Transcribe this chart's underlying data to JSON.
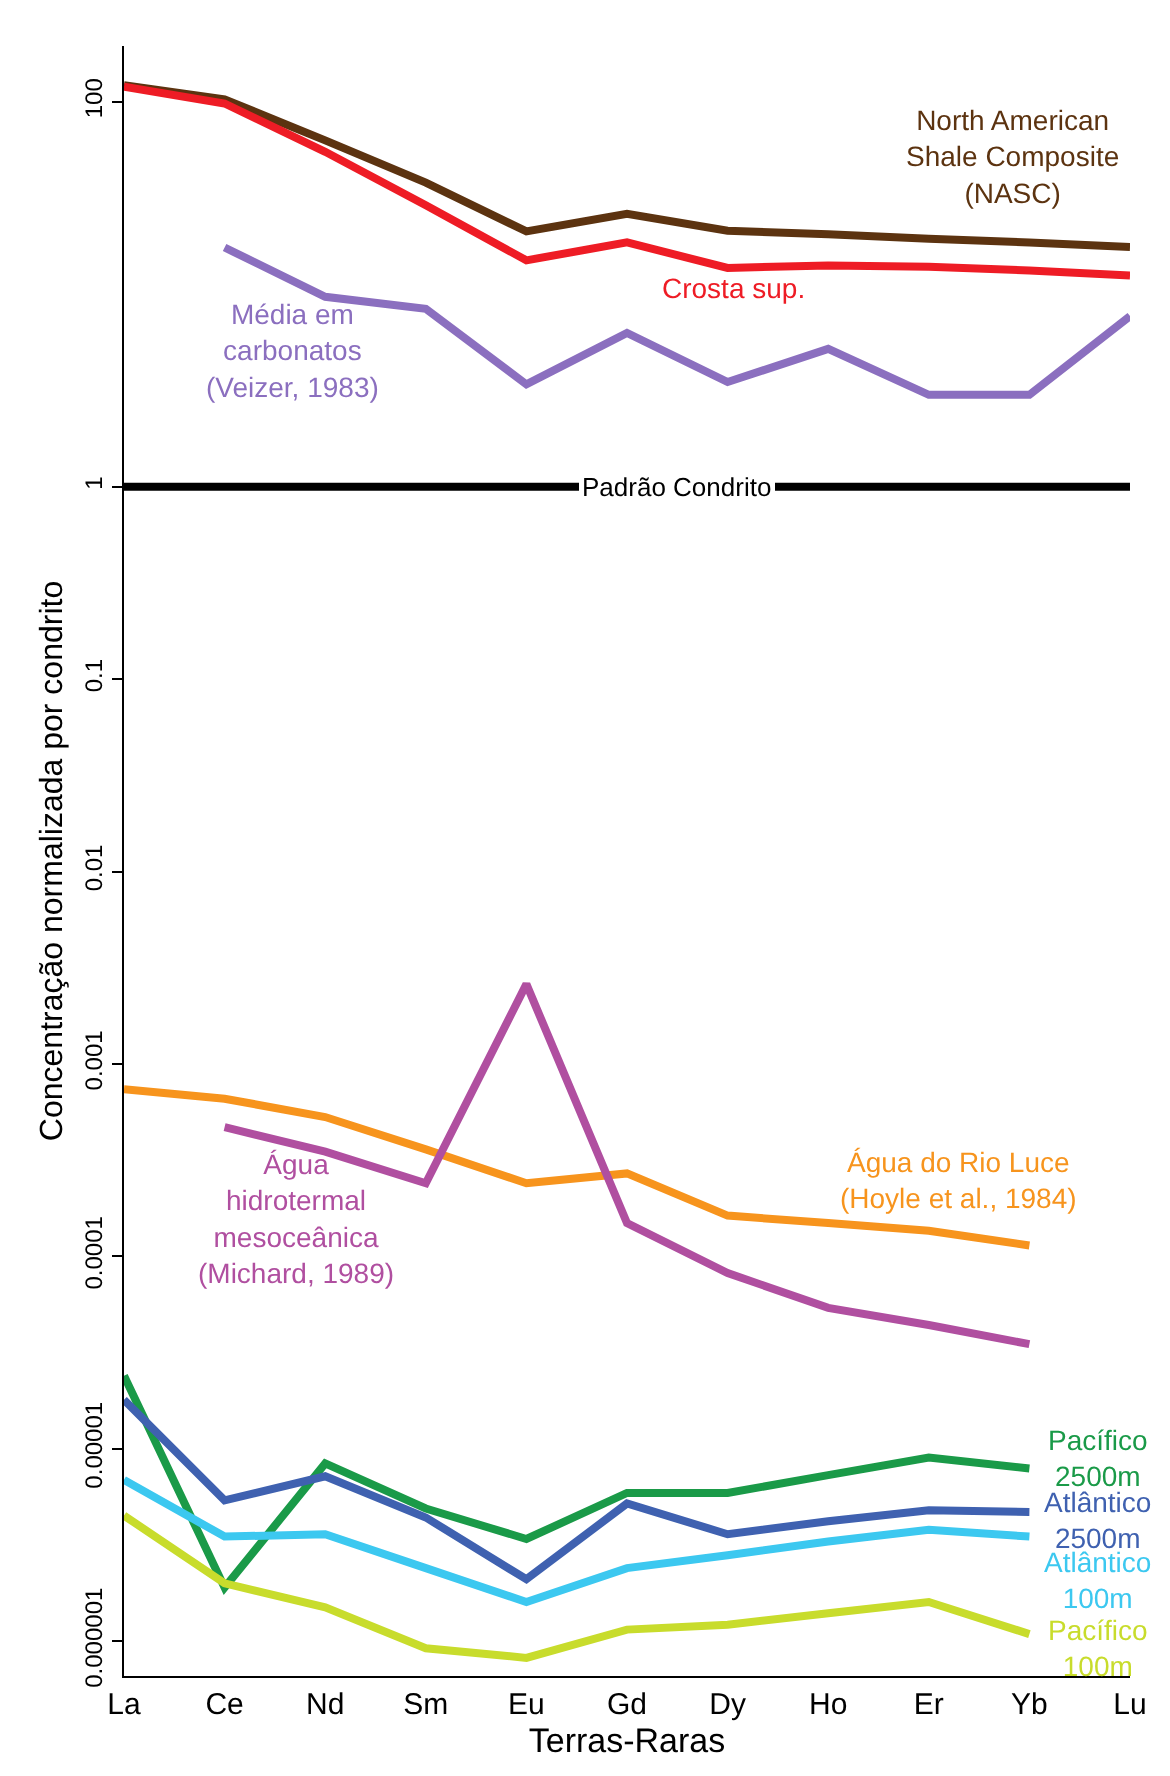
{
  "chart_data": {
    "type": "line",
    "xlabel": "Terras-Raras",
    "ylabel": "Concentração normalizada por condrito",
    "categories": [
      "La",
      "Ce",
      "Nd",
      "Sm",
      "Eu",
      "Gd",
      "Dy",
      "Ho",
      "Er",
      "Yb",
      "Lu"
    ],
    "log": "y",
    "ylim": [
      6.6e-07,
      195
    ],
    "yticks": [
      100,
      1,
      0.1,
      0.01,
      0.001,
      0.0001,
      {
        "value": 1e-05,
        "label": "0.00001"
      },
      {
        "value": 1e-06,
        "label": "0.000001"
      }
    ],
    "marker": "none",
    "line_style": "solid",
    "series": [
      {
        "name": "North American\nShale Composite\n(NASC)",
        "color": "#5c3310",
        "values": [
          122,
          103,
          63,
          38,
          21.2,
          26.2,
          21.4,
          20.5,
          19.4,
          18.6,
          17.6
        ]
      },
      {
        "name": "Crosta sup.",
        "color": "#ee1c25",
        "values": [
          120,
          98,
          55,
          29,
          15,
          18.6,
          13.7,
          14.1,
          13.9,
          13.3,
          12.5
        ]
      },
      {
        "name": "Média em\ncarbonatos\n(Veizer, 1983)",
        "color": "#8b6fbf",
        "values": [
          null,
          17.5,
          9.7,
          8.4,
          3.4,
          6.3,
          3.5,
          5.2,
          3.0,
          3.0,
          7.7
        ]
      },
      {
        "name": "Água do Rio Luce\n(Hoyle et al., 1984)",
        "color": "#f7941d",
        "values": [
          0.00074,
          0.00066,
          0.00053,
          0.00036,
          0.00024,
          0.00027,
          0.000163,
          0.000149,
          0.000136,
          0.000114,
          null
        ]
      },
      {
        "name": "Água\nhidrotermal\nmesoceânica\n(Michard, 1989)",
        "color": "#b04fa0",
        "values": [
          null,
          0.00047,
          0.00035,
          0.00024,
          0.0026,
          0.000149,
          8.2e-05,
          5.4e-05,
          4.4e-05,
          3.5e-05,
          null
        ]
      },
      {
        "name": "Pacífico\n2500m",
        "color": "#1a9a48",
        "values": [
          2.4e-05,
          1.9e-06,
          8.4e-06,
          4.9e-06,
          3.4e-06,
          5.9e-06,
          5.9e-06,
          7.3e-06,
          9e-06,
          7.9e-06,
          null
        ]
      },
      {
        "name": "Atlântico\n2500m",
        "color": "#3f61b0",
        "values": [
          1.8e-05,
          5.4e-06,
          7.2e-06,
          4.4e-06,
          2.1e-06,
          5.2e-06,
          3.6e-06,
          4.2e-06,
          4.8e-06,
          4.7e-06,
          null
        ]
      },
      {
        "name": "Atlântico\n100m",
        "color": "#3cc8f0",
        "values": [
          6.9e-06,
          3.5e-06,
          3.6e-06,
          2.4e-06,
          1.6e-06,
          2.4e-06,
          2.8e-06,
          3.3e-06,
          3.8e-06,
          3.5e-06,
          null
        ]
      },
      {
        "name": "Pacífico\n100m",
        "color": "#c8dc2c",
        "values": [
          4.5e-06,
          2e-06,
          1.5e-06,
          9.2e-07,
          8.2e-07,
          1.15e-06,
          1.22e-06,
          1.4e-06,
          1.6e-06,
          1.09e-06,
          null
        ]
      }
    ],
    "ref_lines": [
      {
        "axis": "y",
        "value": 1,
        "label": "Padrão Condrito",
        "color": "#000000"
      }
    ]
  }
}
